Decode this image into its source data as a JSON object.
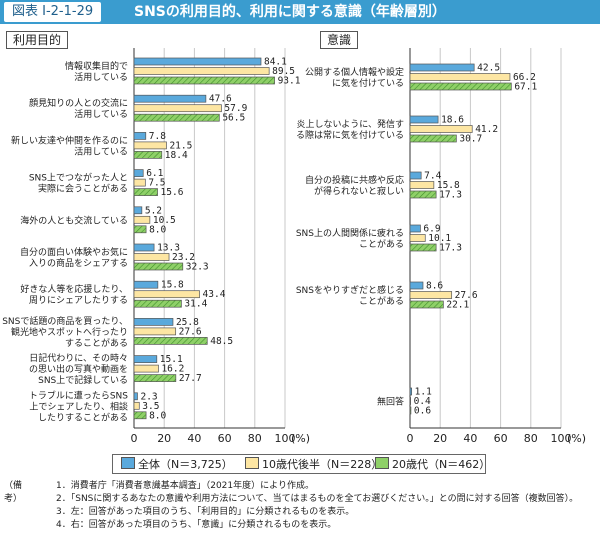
{
  "figure": {
    "number": "図表 I-2-1-29",
    "title": "SNSの利用目的、利用に関する意識（年齢層別）"
  },
  "colors": {
    "blue": "#5aa9dc",
    "yellow": "#fde6a3",
    "green": "#8fd068"
  },
  "legend": [
    {
      "name": "全体（N＝3,725）",
      "fill": "blue"
    },
    {
      "name": "10歳代後半（N＝228）",
      "fill": "yellow"
    },
    {
      "name": "20歳代（N＝462）",
      "fill": "green"
    }
  ],
  "chart_data": [
    {
      "type": "bar",
      "orientation": "horizontal",
      "title": "利用目的",
      "xlim": [
        0,
        100
      ],
      "xticks": [
        "0",
        "20",
        "40",
        "60",
        "80",
        "100"
      ],
      "unit": "(%)",
      "categories": [
        [
          "情報収集目的で",
          "活用している"
        ],
        [
          "顔見知りの人との交流に",
          "活用している"
        ],
        [
          "新しい友達や仲間を作るのに",
          "活用している"
        ],
        [
          "SNS上でつながった人と",
          "実際に会うことがある"
        ],
        [
          "海外の人とも交流している"
        ],
        [
          "自分の面白い体験やお気に",
          "入りの商品をシェアする"
        ],
        [
          "好きな人等を応援したり、",
          "周りにシェアしたりする"
        ],
        [
          "SNSで話題の商品を買ったり、",
          "観光地やスポットへ行ったり",
          "することがある"
        ],
        [
          "日記代わりに、その時々",
          "の思い出の写真や動画を",
          "SNS上で記録している"
        ],
        [
          "トラブルに遭ったらSNS",
          "上でシェアしたり、相談",
          "したりすることがある"
        ]
      ],
      "series": [
        {
          "name": "全体（N＝3,725）",
          "values": [
            84.1,
            47.6,
            7.8,
            6.1,
            5.2,
            13.3,
            15.8,
            25.8,
            15.1,
            2.3
          ]
        },
        {
          "name": "10歳代後半（N＝228）",
          "values": [
            89.5,
            57.9,
            21.5,
            7.5,
            10.5,
            23.2,
            43.4,
            27.6,
            16.2,
            3.5
          ]
        },
        {
          "name": "20歳代（N＝462）",
          "values": [
            93.1,
            56.5,
            18.4,
            15.6,
            8.0,
            32.3,
            31.4,
            48.5,
            27.7,
            8.0
          ]
        }
      ]
    },
    {
      "type": "bar",
      "orientation": "horizontal",
      "title": "意識",
      "xlim": [
        0,
        100
      ],
      "xticks": [
        "0",
        "20",
        "40",
        "60",
        "80",
        "100"
      ],
      "unit": "(%)",
      "categories": [
        [
          "公開する個人情報や設定",
          "に気を付けている"
        ],
        [
          "炎上しないように、発信す",
          "る際は常に気を付けている"
        ],
        [
          "自分の投稿に共感や反応",
          "が得られないと寂しい"
        ],
        [
          "SNS上の人間関係に疲れる",
          "ことがある"
        ],
        [
          "SNSをやりすぎだと感じる",
          "ことがある"
        ],
        [
          "無回答"
        ]
      ],
      "series": [
        {
          "name": "全体（N＝3,725）",
          "values": [
            42.5,
            18.6,
            7.4,
            6.9,
            8.6,
            1.1
          ]
        },
        {
          "name": "10歳代後半（N＝228）",
          "values": [
            66.2,
            41.2,
            15.8,
            10.1,
            27.6,
            0.4
          ]
        },
        {
          "name": "20歳代（N＝462）",
          "values": [
            67.1,
            30.7,
            17.3,
            17.3,
            22.1,
            0.6
          ]
        }
      ]
    }
  ],
  "notes": {
    "label": "（備考）",
    "items": [
      "1．消費者庁「消費者意識基本調査」（2021年度）により作成。",
      "2．「SNSに関するあなたの意識や利用方法について、当てはまるものを全てお選びください。」との問に対する回答（複数回答）。",
      "3．左：回答があった項目のうち、「利用目的」に分類されるものを表示。",
      "4．右：回答があった項目のうち、「意識」に分類されるものを表示。"
    ]
  }
}
